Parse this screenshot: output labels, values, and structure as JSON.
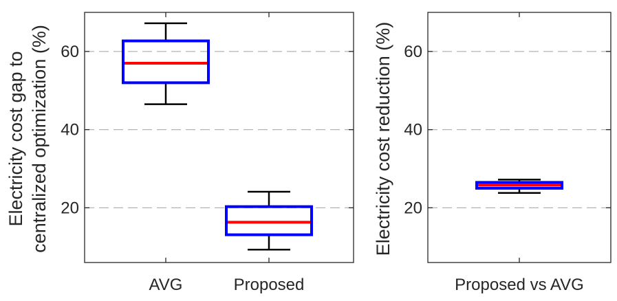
{
  "chart_data": [
    {
      "type": "box",
      "title": "",
      "xlabel": "",
      "ylabel": [
        "Electricity cost gap to",
        "centralized optimization (%)"
      ],
      "ylim": [
        6,
        70
      ],
      "yticks": [
        20,
        40,
        60
      ],
      "grid": "horizontal dashed",
      "categories": [
        "AVG",
        "Proposed"
      ],
      "boxes": [
        {
          "name": "AVG",
          "whisker_low": 46.5,
          "q1": 52,
          "median": 57,
          "q3": 62.7,
          "whisker_high": 67.2
        },
        {
          "name": "Proposed",
          "whisker_low": 9.3,
          "q1": 13.1,
          "median": 16.3,
          "q3": 20.3,
          "whisker_high": 24.1
        }
      ]
    },
    {
      "type": "box",
      "title": "",
      "xlabel": "",
      "ylabel": [
        "Electricity cost reduction (%)"
      ],
      "ylim": [
        6,
        70
      ],
      "yticks": [
        20,
        40,
        60
      ],
      "grid": "horizontal dashed",
      "categories": [
        "Proposed vs AVG"
      ],
      "boxes": [
        {
          "name": "Proposed vs AVG",
          "whisker_low": 23.8,
          "q1": 25,
          "median": 25.8,
          "q3": 26.5,
          "whisker_high": 27.2
        }
      ]
    }
  ],
  "colors": {
    "box_edge": "#0000ff",
    "median": "#ff0000",
    "whisker": "#000000",
    "grid": "#b3b3b3",
    "axes": "#262626"
  }
}
